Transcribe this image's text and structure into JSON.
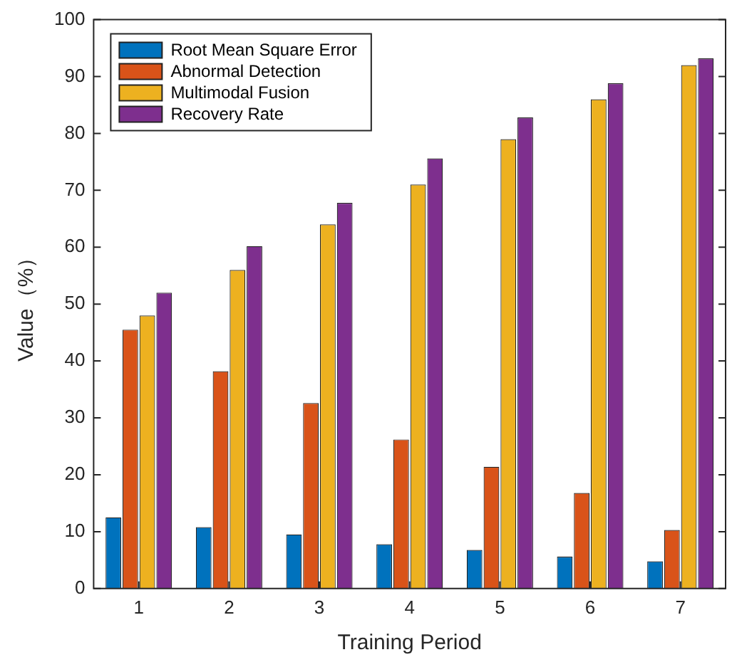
{
  "chart_data": {
    "type": "bar",
    "xlabel": "Training Period",
    "ylabel": "Value（%）",
    "categories": [
      "1",
      "2",
      "3",
      "4",
      "5",
      "6",
      "7"
    ],
    "series": [
      {
        "name": "Root Mean Square Error",
        "color": "#0072bd",
        "values": [
          12.5,
          10.8,
          9.5,
          7.8,
          6.8,
          5.6,
          4.8
        ]
      },
      {
        "name": "Abnormal Detection",
        "color": "#d95319",
        "values": [
          45.5,
          38.2,
          32.6,
          26.2,
          21.4,
          16.8,
          10.3
        ]
      },
      {
        "name": "Multimodal Fusion",
        "color": "#edb120",
        "values": [
          48,
          56,
          64,
          71,
          79,
          86,
          92
        ]
      },
      {
        "name": "Recovery Rate",
        "color": "#7e2f8e",
        "values": [
          52,
          60.2,
          67.8,
          75.6,
          82.8,
          88.8,
          93.2
        ]
      }
    ],
    "ylim": [
      0,
      100
    ],
    "yticks": [
      0,
      10,
      20,
      30,
      40,
      50,
      60,
      70,
      80,
      90,
      100
    ],
    "grid": false,
    "legend": "top left"
  }
}
